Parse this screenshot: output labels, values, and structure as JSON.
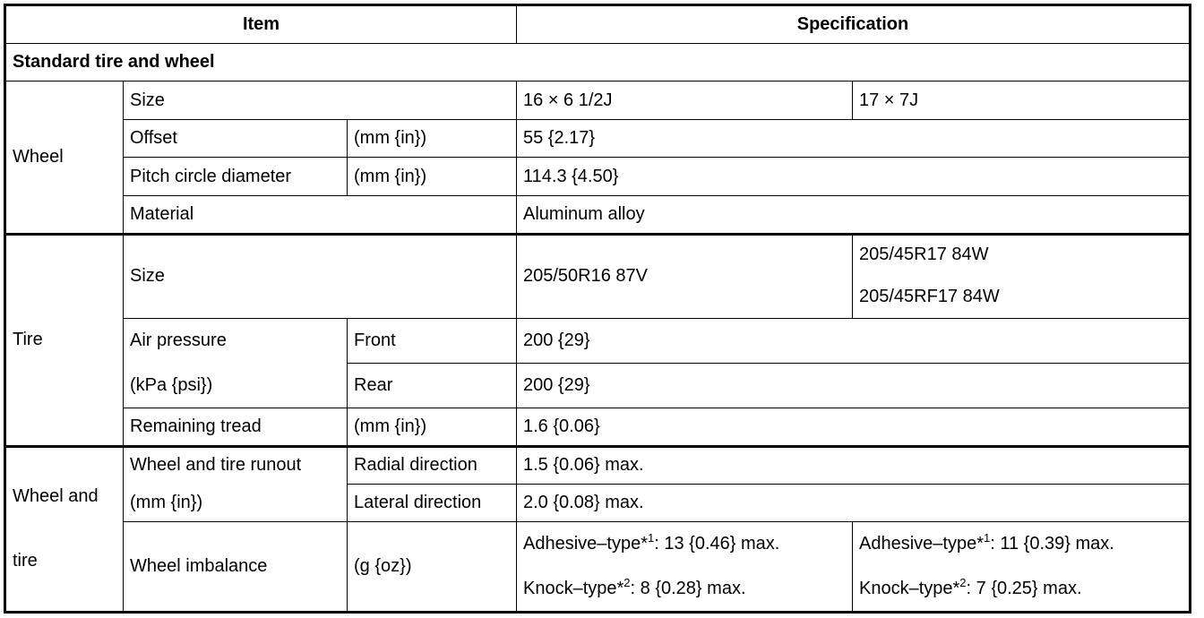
{
  "header": {
    "item": "Item",
    "specification": "Specification"
  },
  "section": "Standard tire and wheel",
  "wheel": {
    "label": "Wheel",
    "size": {
      "label": "Size",
      "v16": "16 × 6 1/2J",
      "v17": "17 × 7J"
    },
    "offset": {
      "label": "Offset",
      "unit": "(mm {in})",
      "value": "55 {2.17}"
    },
    "pcd": {
      "label": "Pitch circle diameter",
      "unit": "(mm {in})",
      "value": "114.3 {4.50}"
    },
    "material": {
      "label": "Material",
      "value": "Aluminum alloy"
    }
  },
  "tire": {
    "label": "Tire",
    "size": {
      "label": "Size",
      "v16": "205/50R16 87V",
      "v17": [
        "205/45R17 84W",
        "205/45RF17 84W"
      ]
    },
    "air_pressure": {
      "label": [
        "Air pressure",
        "(kPa {psi})"
      ],
      "front_label": "Front",
      "front_value": "200 {29}",
      "rear_label": "Rear",
      "rear_value": "200 {29}"
    },
    "tread": {
      "label": "Remaining tread",
      "unit": "(mm {in})",
      "value": "1.6 {0.06}"
    }
  },
  "wheel_tire": {
    "label": [
      "Wheel and",
      "tire"
    ],
    "runout": {
      "label": [
        "Wheel and tire runout",
        "(mm {in})"
      ],
      "radial_label": "Radial direction",
      "radial_value": "1.5 {0.06} max.",
      "lateral_label": "Lateral direction",
      "lateral_value": "2.0 {0.08} max."
    },
    "imbalance": {
      "label": "Wheel imbalance",
      "unit": "(g {oz})",
      "v16": {
        "adhesive_prefix": "Adhesive–type*",
        "adhesive_note": "1",
        "adhesive_value": ": 13 {0.46} max.",
        "knock_prefix": "Knock–type*",
        "knock_note": "2",
        "knock_value": ": 8 {0.28} max."
      },
      "v17": {
        "adhesive_prefix": "Adhesive–type*",
        "adhesive_note": "1",
        "adhesive_value": ": 11 {0.39} max.",
        "knock_prefix": "Knock–type*",
        "knock_note": "2",
        "knock_value": ": 7 {0.25} max."
      }
    }
  }
}
